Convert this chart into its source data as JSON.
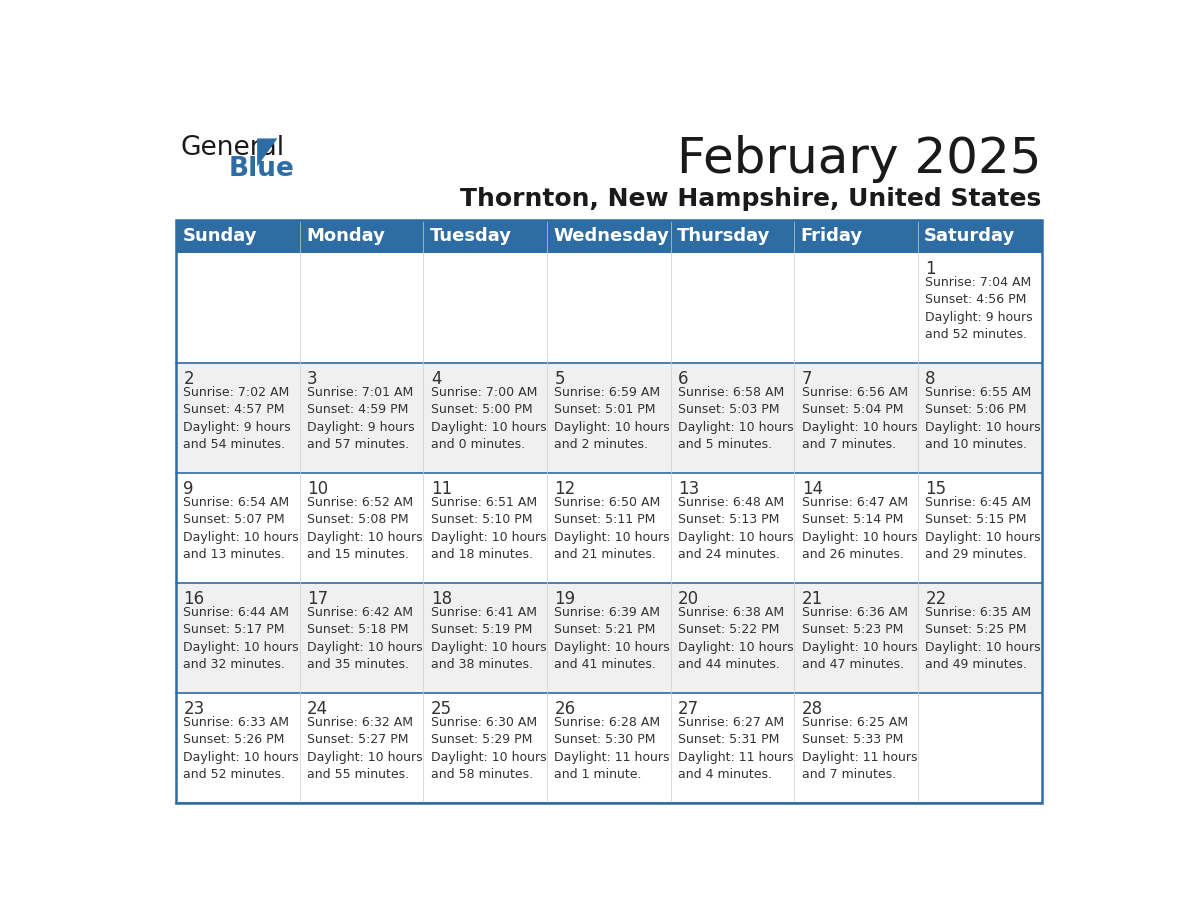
{
  "title": "February 2025",
  "subtitle": "Thornton, New Hampshire, United States",
  "header_bg_color": "#2E6DA4",
  "header_text_color": "#FFFFFF",
  "cell_bg_color": "#FFFFFF",
  "alt_cell_bg_color": "#F0F0F0",
  "border_color": "#2E6DA4",
  "day_names": [
    "Sunday",
    "Monday",
    "Tuesday",
    "Wednesday",
    "Thursday",
    "Friday",
    "Saturday"
  ],
  "calendar": [
    [
      {
        "day": "",
        "info": ""
      },
      {
        "day": "",
        "info": ""
      },
      {
        "day": "",
        "info": ""
      },
      {
        "day": "",
        "info": ""
      },
      {
        "day": "",
        "info": ""
      },
      {
        "day": "",
        "info": ""
      },
      {
        "day": "1",
        "info": "Sunrise: 7:04 AM\nSunset: 4:56 PM\nDaylight: 9 hours\nand 52 minutes."
      }
    ],
    [
      {
        "day": "2",
        "info": "Sunrise: 7:02 AM\nSunset: 4:57 PM\nDaylight: 9 hours\nand 54 minutes."
      },
      {
        "day": "3",
        "info": "Sunrise: 7:01 AM\nSunset: 4:59 PM\nDaylight: 9 hours\nand 57 minutes."
      },
      {
        "day": "4",
        "info": "Sunrise: 7:00 AM\nSunset: 5:00 PM\nDaylight: 10 hours\nand 0 minutes."
      },
      {
        "day": "5",
        "info": "Sunrise: 6:59 AM\nSunset: 5:01 PM\nDaylight: 10 hours\nand 2 minutes."
      },
      {
        "day": "6",
        "info": "Sunrise: 6:58 AM\nSunset: 5:03 PM\nDaylight: 10 hours\nand 5 minutes."
      },
      {
        "day": "7",
        "info": "Sunrise: 6:56 AM\nSunset: 5:04 PM\nDaylight: 10 hours\nand 7 minutes."
      },
      {
        "day": "8",
        "info": "Sunrise: 6:55 AM\nSunset: 5:06 PM\nDaylight: 10 hours\nand 10 minutes."
      }
    ],
    [
      {
        "day": "9",
        "info": "Sunrise: 6:54 AM\nSunset: 5:07 PM\nDaylight: 10 hours\nand 13 minutes."
      },
      {
        "day": "10",
        "info": "Sunrise: 6:52 AM\nSunset: 5:08 PM\nDaylight: 10 hours\nand 15 minutes."
      },
      {
        "day": "11",
        "info": "Sunrise: 6:51 AM\nSunset: 5:10 PM\nDaylight: 10 hours\nand 18 minutes."
      },
      {
        "day": "12",
        "info": "Sunrise: 6:50 AM\nSunset: 5:11 PM\nDaylight: 10 hours\nand 21 minutes."
      },
      {
        "day": "13",
        "info": "Sunrise: 6:48 AM\nSunset: 5:13 PM\nDaylight: 10 hours\nand 24 minutes."
      },
      {
        "day": "14",
        "info": "Sunrise: 6:47 AM\nSunset: 5:14 PM\nDaylight: 10 hours\nand 26 minutes."
      },
      {
        "day": "15",
        "info": "Sunrise: 6:45 AM\nSunset: 5:15 PM\nDaylight: 10 hours\nand 29 minutes."
      }
    ],
    [
      {
        "day": "16",
        "info": "Sunrise: 6:44 AM\nSunset: 5:17 PM\nDaylight: 10 hours\nand 32 minutes."
      },
      {
        "day": "17",
        "info": "Sunrise: 6:42 AM\nSunset: 5:18 PM\nDaylight: 10 hours\nand 35 minutes."
      },
      {
        "day": "18",
        "info": "Sunrise: 6:41 AM\nSunset: 5:19 PM\nDaylight: 10 hours\nand 38 minutes."
      },
      {
        "day": "19",
        "info": "Sunrise: 6:39 AM\nSunset: 5:21 PM\nDaylight: 10 hours\nand 41 minutes."
      },
      {
        "day": "20",
        "info": "Sunrise: 6:38 AM\nSunset: 5:22 PM\nDaylight: 10 hours\nand 44 minutes."
      },
      {
        "day": "21",
        "info": "Sunrise: 6:36 AM\nSunset: 5:23 PM\nDaylight: 10 hours\nand 47 minutes."
      },
      {
        "day": "22",
        "info": "Sunrise: 6:35 AM\nSunset: 5:25 PM\nDaylight: 10 hours\nand 49 minutes."
      }
    ],
    [
      {
        "day": "23",
        "info": "Sunrise: 6:33 AM\nSunset: 5:26 PM\nDaylight: 10 hours\nand 52 minutes."
      },
      {
        "day": "24",
        "info": "Sunrise: 6:32 AM\nSunset: 5:27 PM\nDaylight: 10 hours\nand 55 minutes."
      },
      {
        "day": "25",
        "info": "Sunrise: 6:30 AM\nSunset: 5:29 PM\nDaylight: 10 hours\nand 58 minutes."
      },
      {
        "day": "26",
        "info": "Sunrise: 6:28 AM\nSunset: 5:30 PM\nDaylight: 11 hours\nand 1 minute."
      },
      {
        "day": "27",
        "info": "Sunrise: 6:27 AM\nSunset: 5:31 PM\nDaylight: 11 hours\nand 4 minutes."
      },
      {
        "day": "28",
        "info": "Sunrise: 6:25 AM\nSunset: 5:33 PM\nDaylight: 11 hours\nand 7 minutes."
      },
      {
        "day": "",
        "info": ""
      }
    ]
  ],
  "logo_text_general": "General",
  "logo_text_blue": "Blue",
  "logo_color_general": "#1a1a1a",
  "logo_color_blue": "#2E6DA4",
  "logo_triangle_color": "#2E6DA4",
  "title_fontsize": 36,
  "subtitle_fontsize": 18,
  "day_header_fontsize": 13,
  "day_num_fontsize": 12,
  "cell_text_fontsize": 9
}
